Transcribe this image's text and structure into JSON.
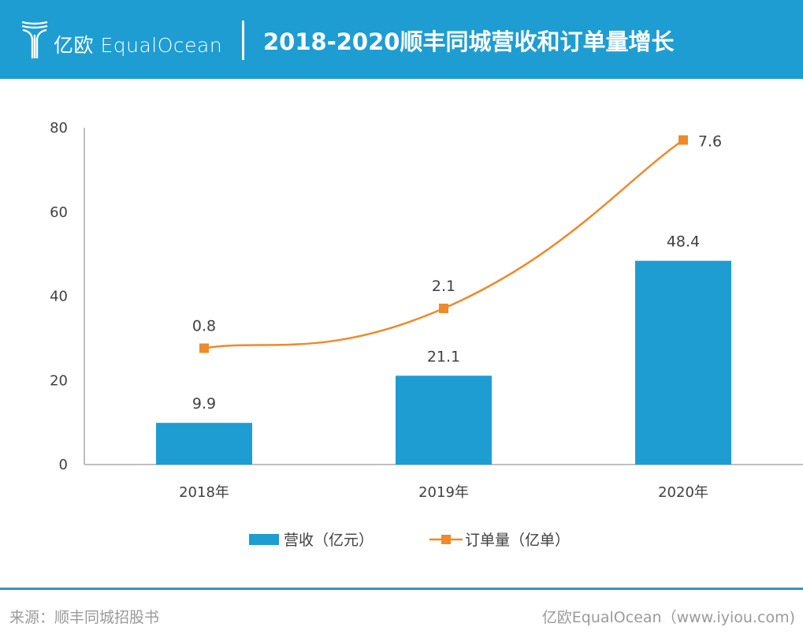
{
  "header": {
    "logo_text": "亿欧 EqualOcean",
    "title": "2018-2020顺丰同城营收和订单量增长"
  },
  "footer": {
    "source": "来源：顺丰同城招股书",
    "credit": "亿欧EqualOcean（www.iyiou.com)"
  },
  "colors": {
    "header": "#1e9dd3",
    "bar": "#1e9dd3",
    "line": "#ee8a2a",
    "footer_line": "#3a8fbf"
  },
  "chart_data": {
    "type": "bar+line",
    "title": "2018-2020顺丰同城营收和订单量增长",
    "categories": [
      "2018年",
      "2019年",
      "2020年"
    ],
    "ylim": [
      0,
      80
    ],
    "yticks": [
      0,
      20,
      40,
      60,
      80
    ],
    "y2lim": [
      -3,
      8
    ],
    "y2_visible": false,
    "grid": false,
    "legend": "bottom",
    "series": [
      {
        "name": "营收（亿元）",
        "type": "bar",
        "axis": "left",
        "values": [
          9.9,
          21.1,
          48.4
        ],
        "labels": [
          "9.9",
          "21.1",
          "48.4"
        ]
      },
      {
        "name": "订单量（亿单）",
        "type": "line",
        "axis": "right",
        "smooth": true,
        "marker": "square",
        "values": [
          0.8,
          2.1,
          7.6
        ],
        "labels": [
          "0.8",
          "2.1",
          "7.6"
        ]
      }
    ]
  }
}
